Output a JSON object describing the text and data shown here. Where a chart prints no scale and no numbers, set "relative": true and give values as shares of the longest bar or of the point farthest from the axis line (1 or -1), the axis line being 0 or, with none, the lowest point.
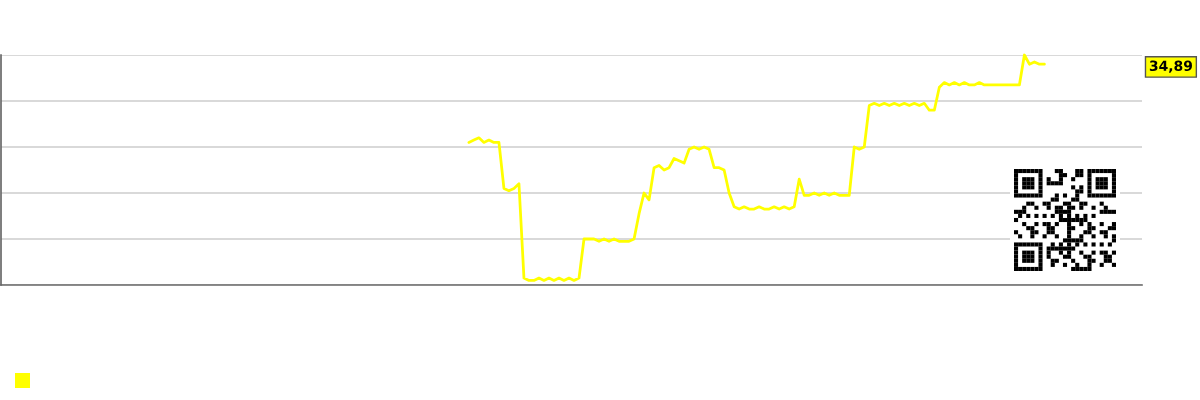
{
  "chart_data": {
    "type": "line",
    "relative": true,
    "grid": "y",
    "annotations": [
      "34,89"
    ],
    "categories": [
      null,
      null,
      null,
      null,
      null,
      null,
      null,
      null,
      null,
      null,
      null,
      null,
      null,
      null,
      null,
      null,
      null,
      null,
      null,
      null,
      null,
      null,
      null,
      null,
      null,
      null,
      null,
      null,
      null,
      null,
      null,
      null,
      null,
      null,
      null,
      null,
      null,
      null,
      null,
      null,
      null,
      null,
      null,
      null,
      null,
      null,
      null,
      null,
      null,
      null,
      null,
      null,
      null,
      null,
      null,
      null,
      null,
      null,
      null,
      null,
      null,
      null,
      null,
      null,
      null,
      null,
      null,
      null,
      null,
      null,
      null,
      null,
      null,
      null,
      null,
      null,
      null,
      null,
      null,
      null,
      null,
      null,
      null,
      null,
      null,
      null,
      null,
      null,
      null,
      null,
      null,
      null,
      null,
      null,
      null,
      null,
      null,
      null,
      null,
      null,
      null,
      null,
      null,
      null,
      null,
      null,
      null,
      null,
      null,
      null,
      null,
      null,
      null,
      null,
      null,
      null,
      null,
      null,
      null,
      null,
      null,
      null,
      null,
      null,
      null,
      null,
      null,
      null,
      null,
      null,
      null,
      null,
      null,
      null,
      null,
      null,
      null,
      null,
      null,
      null,
      null,
      null,
      null,
      null,
      null,
      null,
      null,
      null,
      null,
      null,
      null,
      null,
      null,
      null,
      null,
      null,
      null,
      null,
      null,
      null,
      null,
      null,
      null,
      null,
      null,
      null,
      null,
      null,
      null,
      null,
      null,
      null,
      null,
      null,
      null,
      null,
      null,
      null,
      null,
      null,
      null,
      null,
      null,
      null,
      null,
      null,
      null,
      null,
      null,
      null,
      null,
      null,
      null,
      null,
      null,
      null,
      null,
      null,
      null,
      null,
      null,
      null,
      null,
      null,
      null,
      null,
      null,
      null,
      null,
      null,
      null,
      null,
      null,
      null,
      null,
      null,
      null,
      null,
      null,
      null,
      null,
      null,
      null,
      null,
      null,
      null,
      null,
      null
    ],
    "series": [
      {
        "color": "#ffff00",
        "values": [
          null,
          null,
          null,
          null,
          null,
          null,
          null,
          null,
          null,
          null,
          null,
          null,
          null,
          null,
          null,
          null,
          null,
          null,
          null,
          null,
          null,
          null,
          null,
          null,
          null,
          null,
          null,
          null,
          null,
          null,
          null,
          null,
          null,
          null,
          null,
          null,
          null,
          null,
          null,
          null,
          null,
          null,
          null,
          null,
          null,
          null,
          null,
          null,
          null,
          null,
          null,
          null,
          null,
          null,
          null,
          null,
          null,
          null,
          null,
          null,
          null,
          null,
          null,
          null,
          null,
          null,
          null,
          null,
          null,
          null,
          null,
          null,
          null,
          null,
          null,
          null,
          null,
          null,
          null,
          null,
          null,
          null,
          null,
          null,
          null,
          null,
          null,
          null,
          null,
          null,
          null,
          null,
          null,
          0.62,
          0.63,
          0.64,
          0.62,
          0.63,
          0.62,
          0.62,
          0.42,
          0.41,
          0.42,
          0.44,
          0.03,
          0.02,
          0.02,
          0.03,
          0.02,
          0.03,
          0.02,
          0.03,
          0.02,
          0.03,
          0.02,
          0.03,
          0.2,
          0.2,
          0.2,
          0.19,
          0.2,
          0.19,
          0.2,
          0.19,
          0.19,
          0.19,
          0.2,
          0.31,
          0.4,
          0.37,
          0.51,
          0.52,
          0.5,
          0.51,
          0.55,
          0.54,
          0.53,
          0.59,
          0.6,
          0.59,
          0.6,
          0.59,
          0.51,
          0.51,
          0.5,
          0.4,
          0.34,
          0.33,
          0.34,
          0.33,
          0.33,
          0.34,
          0.33,
          0.33,
          0.34,
          0.33,
          0.34,
          0.33,
          0.34,
          0.46,
          0.39,
          0.39,
          0.4,
          0.39,
          0.4,
          0.39,
          0.4,
          0.39,
          0.39,
          0.39,
          0.6,
          0.59,
          0.6,
          0.78,
          0.79,
          0.78,
          0.79,
          0.78,
          0.79,
          0.78,
          0.79,
          0.78,
          0.79,
          0.78,
          0.79,
          0.76,
          0.76,
          0.86,
          0.88,
          0.87,
          0.88,
          0.87,
          0.88,
          0.87,
          0.87,
          0.88,
          0.87,
          0.87,
          0.87,
          0.87,
          0.87,
          0.87,
          0.87,
          0.87,
          1,
          0.96,
          0.97,
          0.96,
          0.96,
          null,
          null,
          null,
          null,
          null,
          null,
          null,
          null,
          null,
          null,
          null,
          null,
          null,
          null,
          null,
          null,
          null,
          null,
          null
        ]
      }
    ]
  }
}
